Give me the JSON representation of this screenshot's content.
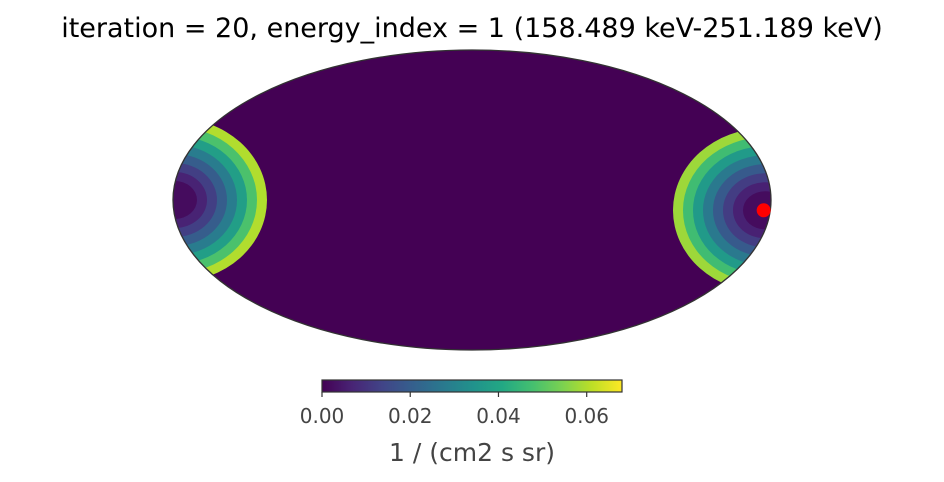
{
  "chart_data": {
    "type": "heatmap",
    "projection": "mollweide",
    "title": "iteration = 20, energy_index = 1 (158.489 keV-251.189 keV)",
    "colormap": "viridis",
    "colorbar": {
      "range": [
        0.0,
        0.068
      ],
      "ticks": [
        "0.00",
        "0.02",
        "0.04",
        "0.06"
      ],
      "tick_values": [
        0.0,
        0.02,
        0.04,
        0.06
      ],
      "unit_label": "1 / (cm2 s sr)"
    },
    "background_value": 0.0,
    "hotspots": [
      {
        "region": "left edge, slightly above equator",
        "lon": -180,
        "lat": 0,
        "peak_value": 0.06
      },
      {
        "region": "right edge, slightly below equator",
        "lon": 178,
        "lat": -5,
        "peak_value": 0.058
      }
    ],
    "markers": [
      {
        "name": "source position",
        "color": "#ff0000",
        "lon": 176,
        "lat": -5
      }
    ]
  }
}
